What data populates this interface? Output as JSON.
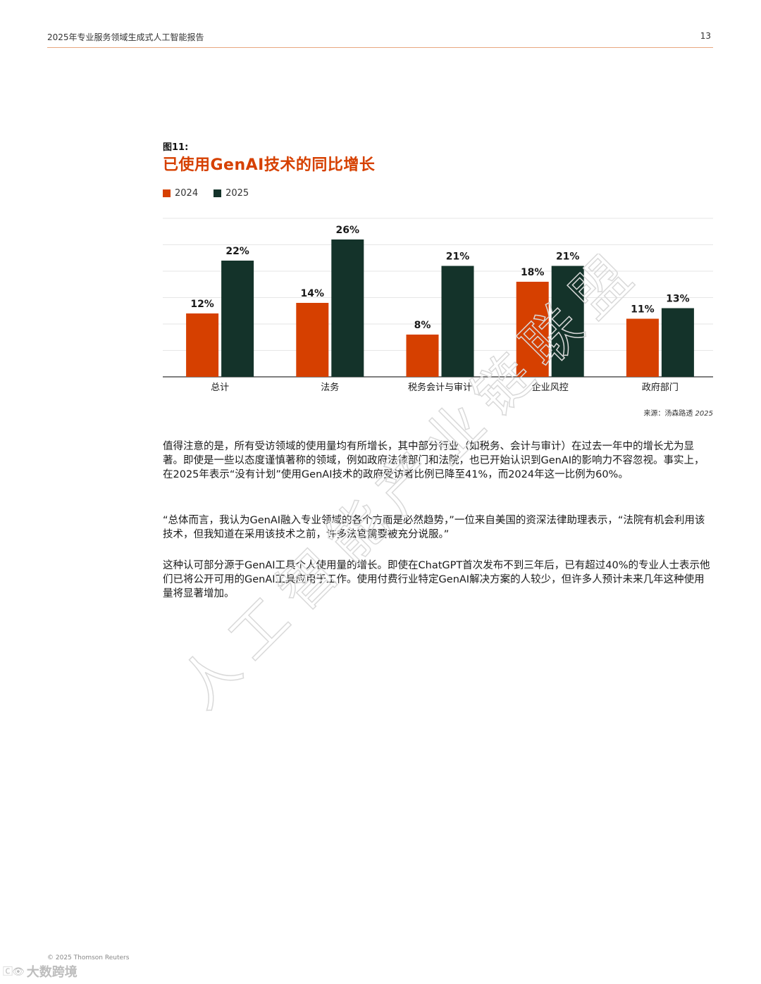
{
  "header": {
    "title": "2025年专业服务领域生成式人工智能报告",
    "page_number": "13"
  },
  "figure": {
    "label": "图11:",
    "title": "已使用GenAI技术的同比增长"
  },
  "chart_data": {
    "type": "bar",
    "categories": [
      "总计",
      "法务",
      "税务会计与审计",
      "企业风控",
      "政府部门"
    ],
    "series": [
      {
        "name": "2024",
        "values": [
          12,
          14,
          8,
          18,
          11
        ],
        "labels": [
          "12%",
          "14%",
          "8%",
          "18%",
          "11%"
        ],
        "color": "#d64000"
      },
      {
        "name": "2025",
        "values": [
          22,
          26,
          21,
          21,
          13
        ],
        "labels": [
          "22%",
          "26%",
          "21%",
          "21%",
          "13%"
        ],
        "color": "#14332a"
      }
    ],
    "ylim": [
      0,
      30
    ],
    "grid": true,
    "legend": "top-left"
  },
  "source": {
    "prefix": "来源：汤森路透",
    "year": "2025"
  },
  "paragraphs": [
    "值得注意的是，所有受访领域的使用量均有所增长，其中部分行业（如税务、会计与审计）在过去一年中的增长尤为显著。即使是一些以态度谨慎著称的领域，例如政府法律部门和法院，也已开始认识到GenAI的影响力不容忽视。事实上，在2025年表示“没有计划”使用GenAI技术的政府受访者比例已降至41%，而2024年这一比例为60%。",
    "“总体而言，我认为GenAI融入专业领域的各个方面是必然趋势，”一位来自美国的资深法律助理表示，“法院有机会利用该技术，但我知道在采用该技术之前，许多法官需要被充分说服。”",
    "这种认可部分源于GenAI工具个人使用量的增长。即使在ChatGPT首次发布不到三年后，已有超过40%的专业人士表示他们已将公开可用的GenAI工具应用于工作。使用付费行业特定GenAI解决方案的人较少，但许多人预计未来几年这种使用量将显著增加。"
  ],
  "watermark": {
    "text": "人工智能产业链联盟"
  },
  "footer": {
    "copyright": "© 2025 Thomson Reuters",
    "logo_text": "大数跨境"
  },
  "colors": {
    "accent": "#d64000",
    "dark": "#14332a",
    "rule": "#e8a780"
  }
}
